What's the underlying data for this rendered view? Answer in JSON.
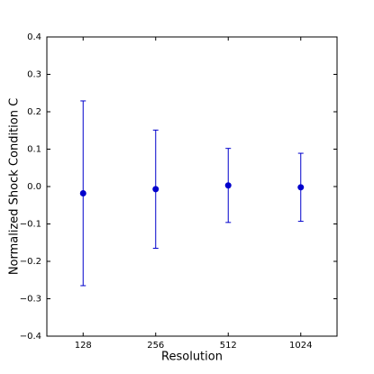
{
  "chart_data": {
    "type": "errorbar",
    "categories": [
      "128",
      "256",
      "512",
      "1024"
    ],
    "xlabel": "Resolution",
    "ylabel": "Normalized Shock Condition C",
    "series": [
      {
        "color": "#0000cc",
        "values": [
          -0.018,
          -0.007,
          0.003,
          -0.002
        ],
        "errors": [
          0.247,
          0.158,
          0.099,
          0.091
        ]
      }
    ],
    "ylim": [
      -0.4,
      0.4
    ],
    "yticks": [
      {
        "value": -0.4,
        "label": "−0.4"
      },
      {
        "value": -0.3,
        "label": "−0.3"
      },
      {
        "value": -0.2,
        "label": "−0.2"
      },
      {
        "value": -0.1,
        "label": "−0.1"
      },
      {
        "value": 0,
        "label": "0.0"
      },
      0.1,
      0.2,
      0.3,
      0.4
    ]
  }
}
